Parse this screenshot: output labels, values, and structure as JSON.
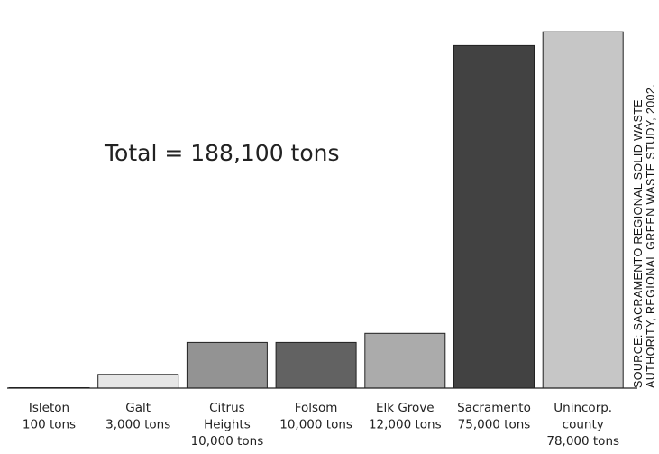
{
  "chart_data": {
    "type": "bar",
    "title": "",
    "xlabel": "",
    "ylabel": "",
    "ylim": [
      0,
      81000
    ],
    "annotation": "Total = 188,100 tons",
    "source": [
      "SOURCE: SACRAMENTO REGIONAL SOLID WASTE",
      "AUTHORITY, REGIONAL GREEN WASTE STUDY, 2002."
    ],
    "categories": [
      {
        "label_lines": [
          "Isleton",
          "100 tons"
        ],
        "value": 100,
        "color": "#ffffff"
      },
      {
        "label_lines": [
          "Galt",
          "3,000 tons"
        ],
        "value": 3000,
        "color": "#e6e6e6"
      },
      {
        "label_lines": [
          "Citrus",
          "Heights",
          "10,000 tons"
        ],
        "value": 10000,
        "color": "#939393"
      },
      {
        "label_lines": [
          "Folsom",
          "10,000 tons"
        ],
        "value": 10000,
        "color": "#626262"
      },
      {
        "label_lines": [
          "Elk Grove",
          "12,000 tons"
        ],
        "value": 12000,
        "color": "#ababab"
      },
      {
        "label_lines": [
          "Sacramento",
          "75,000 tons"
        ],
        "value": 75000,
        "color": "#424242"
      },
      {
        "label_lines": [
          "Unincorp.",
          "county",
          "78,000 tons"
        ],
        "value": 78000,
        "color": "#c6c6c6"
      }
    ]
  }
}
